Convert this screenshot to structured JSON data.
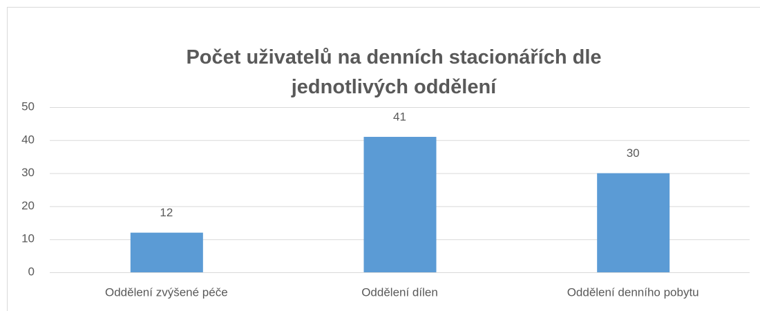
{
  "chart_data": {
    "type": "bar",
    "title": "Počet uživatelů na denních stacionářích dle jednotlivých oddělení",
    "categories": [
      "Oddělení zvýšené péče",
      "Oddělení dílen",
      "Oddělení denního pobytu"
    ],
    "values": [
      12,
      41,
      30
    ],
    "color": "#5b9bd5",
    "ylim": [
      0,
      50
    ],
    "yticks": [
      0,
      10,
      20,
      30,
      40,
      50
    ],
    "grid": true
  }
}
